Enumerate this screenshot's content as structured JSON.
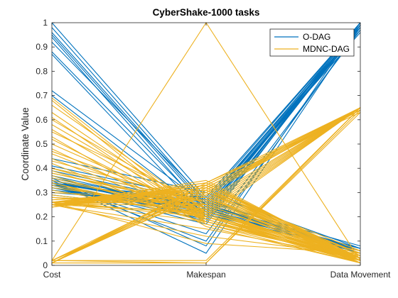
{
  "chart_data": {
    "type": "parallel-coordinates",
    "title": "CyberShake-1000 tasks",
    "ylabel": "Coordinate Value",
    "xlabel": "",
    "axes": [
      "Cost",
      "Makespan",
      "Data Movement"
    ],
    "ylim": [
      0,
      1
    ],
    "yticks": [
      "0",
      "0.1",
      "0.2",
      "0.3",
      "0.4",
      "0.5",
      "0.6",
      "0.7",
      "0.8",
      "0.9",
      "1"
    ],
    "grid": false,
    "legend_position": "top-right",
    "colors": {
      "O-DAG": "#0072BD",
      "MDNC-DAG": "#EDB120"
    },
    "series": [
      {
        "name": "O-DAG",
        "lines": [
          [
            1.0,
            0.28,
            1.0
          ],
          [
            0.98,
            0.26,
            0.99
          ],
          [
            0.96,
            0.25,
            1.0
          ],
          [
            0.95,
            0.24,
            0.98
          ],
          [
            0.94,
            0.22,
            0.99
          ],
          [
            0.92,
            0.27,
            1.0
          ],
          [
            0.88,
            0.23,
            0.97
          ],
          [
            0.87,
            0.2,
            0.99
          ],
          [
            0.72,
            0.25,
            0.98
          ],
          [
            0.7,
            0.21,
            1.0
          ],
          [
            0.44,
            0.3,
            0.07
          ],
          [
            0.41,
            0.27,
            0.06
          ],
          [
            0.4,
            0.26,
            0.08
          ],
          [
            0.39,
            0.25,
            0.06
          ],
          [
            0.38,
            0.24,
            0.07
          ],
          [
            0.37,
            0.23,
            0.05
          ],
          [
            0.36,
            0.24,
            0.06
          ],
          [
            0.35,
            0.22,
            0.07
          ],
          [
            0.35,
            0.21,
            0.06
          ],
          [
            0.34,
            0.25,
            0.05
          ],
          [
            0.34,
            0.23,
            0.07
          ],
          [
            0.33,
            0.22,
            0.06
          ],
          [
            0.33,
            0.2,
            0.98
          ],
          [
            0.32,
            0.24,
            0.07
          ],
          [
            0.32,
            0.21,
            0.06
          ],
          [
            0.31,
            0.23,
            0.05
          ],
          [
            0.3,
            0.25,
            0.07
          ],
          [
            0.29,
            0.22,
            0.06
          ],
          [
            0.36,
            0.08,
            1.0
          ],
          [
            0.35,
            0.05,
            0.99
          ],
          [
            0.34,
            0.1,
            0.98
          ],
          [
            0.33,
            0.17,
            1.0
          ],
          [
            0.34,
            0.13,
            0.97
          ],
          [
            0.37,
            0.18,
            0.99
          ],
          [
            0.36,
            0.22,
            1.0
          ],
          [
            0.35,
            0.24,
            0.96
          ],
          [
            0.34,
            0.26,
            0.98
          ],
          [
            0.33,
            0.28,
            1.0
          ],
          [
            0.32,
            0.19,
            0.99
          ],
          [
            0.31,
            0.24,
            0.97
          ]
        ]
      },
      {
        "name": "MDNC-DAG",
        "lines": [
          [
            0.69,
            0.19,
            0.02
          ],
          [
            0.68,
            0.17,
            0.03
          ],
          [
            0.66,
            0.22,
            0.02
          ],
          [
            0.63,
            0.2,
            0.01
          ],
          [
            0.61,
            0.18,
            0.02
          ],
          [
            0.6,
            0.23,
            0.03
          ],
          [
            0.58,
            0.21,
            0.01
          ],
          [
            0.56,
            0.19,
            0.02
          ],
          [
            0.55,
            0.25,
            0.03
          ],
          [
            0.53,
            0.16,
            0.01
          ],
          [
            0.52,
            0.2,
            0.02
          ],
          [
            0.5,
            0.22,
            0.03
          ],
          [
            0.48,
            0.18,
            0.02
          ],
          [
            0.47,
            0.24,
            0.01
          ],
          [
            0.46,
            0.21,
            0.03
          ],
          [
            0.44,
            0.19,
            0.02
          ],
          [
            0.43,
            0.26,
            0.03
          ],
          [
            0.42,
            0.17,
            0.01
          ],
          [
            0.4,
            0.22,
            0.02
          ],
          [
            0.39,
            0.2,
            0.03
          ],
          [
            0.38,
            0.25,
            0.02
          ],
          [
            0.37,
            0.19,
            0.01
          ],
          [
            0.35,
            0.23,
            0.02
          ],
          [
            0.34,
            0.18,
            0.03
          ],
          [
            0.33,
            0.21,
            0.02
          ],
          [
            0.32,
            0.24,
            0.01
          ],
          [
            0.31,
            0.2,
            0.02
          ],
          [
            0.29,
            0.22,
            0.03
          ],
          [
            0.28,
            0.25,
            0.02
          ],
          [
            0.27,
            0.3,
            0.01
          ],
          [
            0.26,
            0.32,
            0.02
          ],
          [
            0.25,
            0.28,
            0.03
          ],
          [
            0.4,
            0.26,
            0.65
          ],
          [
            0.38,
            0.24,
            0.65
          ],
          [
            0.36,
            0.22,
            0.65
          ],
          [
            0.34,
            0.2,
            0.65
          ],
          [
            0.3,
            0.27,
            0.65
          ],
          [
            0.28,
            0.23,
            0.65
          ],
          [
            0.26,
            0.21,
            0.65
          ],
          [
            0.25,
            0.25,
            0.65
          ],
          [
            0.02,
            1.0,
            0.02
          ],
          [
            0.01,
            0.3,
            0.65
          ],
          [
            0.01,
            0.31,
            0.65
          ],
          [
            0.01,
            0.32,
            0.65
          ],
          [
            0.01,
            0.33,
            0.65
          ],
          [
            0.01,
            0.34,
            0.65
          ],
          [
            0.01,
            0.3,
            0.64
          ],
          [
            0.01,
            0.32,
            0.64
          ],
          [
            0.02,
            0.29,
            0.65
          ],
          [
            0.02,
            0.33,
            0.65
          ],
          [
            0.01,
            0.34,
            0.63
          ],
          [
            0.02,
            0.31,
            0.64
          ],
          [
            0.02,
            0.01,
            0.65
          ],
          [
            0.01,
            0.01,
            0.64
          ],
          [
            0.02,
            0.02,
            0.65
          ],
          [
            0.01,
            0.01,
            0.63
          ],
          [
            0.26,
            0.2,
            0.06
          ],
          [
            0.26,
            0.18,
            0.05
          ],
          [
            0.25,
            0.22,
            0.04
          ],
          [
            0.25,
            0.15,
            0.03
          ],
          [
            0.25,
            0.12,
            0.04
          ],
          [
            0.26,
            0.09,
            0.05
          ],
          [
            0.25,
            0.27,
            0.03
          ],
          [
            0.25,
            0.3,
            0.05
          ],
          [
            0.25,
            0.33,
            0.04
          ],
          [
            0.26,
            0.31,
            0.06
          ],
          [
            0.25,
            0.28,
            0.05
          ],
          [
            0.25,
            0.35,
            0.02
          ],
          [
            0.24,
            0.34,
            0.03
          ],
          [
            0.26,
            0.33,
            0.02
          ],
          [
            0.25,
            0.31,
            0.01
          ],
          [
            0.26,
            0.29,
            0.02
          ],
          [
            0.24,
            0.32,
            0.03
          ],
          [
            0.25,
            0.3,
            0.02
          ],
          [
            0.26,
            0.28,
            0.01
          ],
          [
            0.25,
            0.27,
            0.02
          ],
          [
            0.24,
            0.33,
            0.03
          ],
          [
            0.26,
            0.34,
            0.02
          ],
          [
            0.25,
            0.32,
            0.01
          ],
          [
            0.27,
            0.31,
            0.02
          ]
        ]
      }
    ]
  }
}
